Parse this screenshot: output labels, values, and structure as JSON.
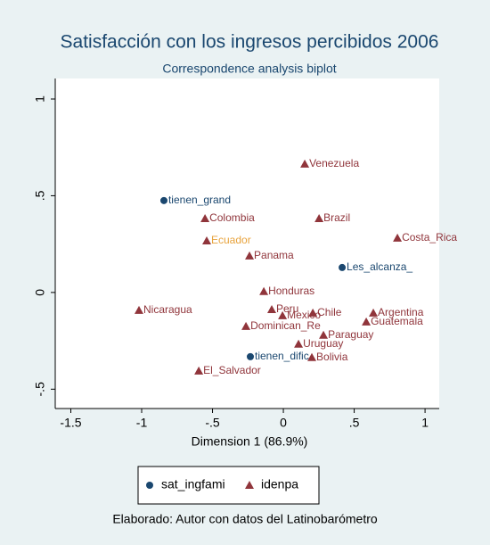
{
  "chart_data": {
    "type": "scatter",
    "title": "Satisfacción con los ingresos percibidos 2006",
    "subtitle": "Correspondence analysis biplot",
    "x_label": "Dimension 1 (86.9%)",
    "note": "Elaborado: Autor con datos del Latinobarómetro",
    "xlim": [
      -1.61,
      1.1
    ],
    "ylim": [
      -0.6,
      1.106
    ],
    "xticks": [
      -1.5,
      -1,
      {
        "value": -0.5,
        "label": "-.5"
      },
      0,
      {
        "value": 0.5,
        "label": ".5"
      },
      1
    ],
    "yticks": [
      {
        "value": -0.5,
        "label": "-.5"
      },
      0,
      {
        "value": 0.5,
        "label": ".5"
      },
      1
    ],
    "grid": false,
    "series": [
      {
        "name": "sat_ingfami",
        "color": "#1a476f",
        "marker": "circle",
        "labels": [
          "tienen_grand",
          "Les_alcanza_",
          "tienen_dific"
        ],
        "label_colors": [
          "#1a476f",
          "#1a476f",
          "#1a476f"
        ],
        "x": [
          -0.843,
          0.415,
          -0.233
        ],
        "values": [
          0.475,
          0.129,
          -0.332
        ]
      },
      {
        "name": "idenpa",
        "color": "#90353b",
        "marker": "triangle",
        "labels": [
          "Venezuela",
          "Colombia",
          "Brazil",
          "Ecuador",
          "Costa_Rica",
          "Panama",
          "Honduras",
          "Nicaragua",
          "Peru",
          "Mexico",
          "Chile",
          "Argentina",
          "Guatemala",
          "Dominican_Re",
          "Paraguay",
          "Uruguay",
          "Bolivia",
          "El_Salvador"
        ],
        "label_colors": [
          "#90353b",
          "#90353b",
          "#90353b",
          "#e8a33d",
          "#90353b",
          "#90353b",
          "#90353b",
          "#90353b",
          "#90353b",
          "#90353b",
          "#90353b",
          "#90353b",
          "#90353b",
          "#90353b",
          "#90353b",
          "#90353b",
          "#90353b",
          "#90353b"
        ],
        "x": [
          0.151,
          -0.553,
          0.252,
          -0.541,
          0.805,
          -0.239,
          -0.138,
          -1.019,
          -0.082,
          -0.006,
          0.208,
          0.635,
          0.585,
          -0.264,
          0.283,
          0.107,
          0.201,
          -0.597
        ],
        "values": [
          0.664,
          0.382,
          0.382,
          0.267,
          0.281,
          0.189,
          0.005,
          -0.092,
          -0.088,
          -0.12,
          -0.106,
          -0.106,
          -0.152,
          -0.175,
          -0.221,
          -0.267,
          -0.336,
          -0.406
        ]
      }
    ]
  }
}
